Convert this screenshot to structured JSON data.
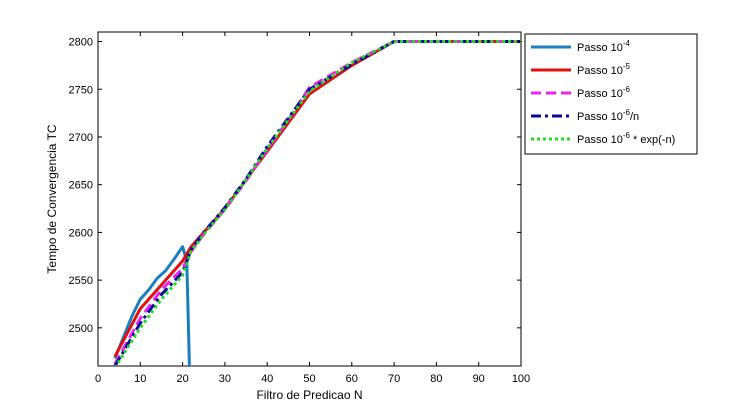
{
  "chart_data": {
    "type": "line",
    "title": "",
    "xlabel": "Filtro de Predicao N",
    "ylabel": "Tempo de Convergencia TC",
    "xlim": [
      0,
      100
    ],
    "ylim": [
      2460,
      2810
    ],
    "xticks": [
      "0",
      "10",
      "20",
      "30",
      "40",
      "50",
      "60",
      "70",
      "80",
      "90",
      "100"
    ],
    "yticks": [
      "2500",
      "2550",
      "2600",
      "2650",
      "2700",
      "2750",
      "2800"
    ],
    "grid": false,
    "legend_position": "top-right-outside",
    "series": [
      {
        "name": "Passo 10^-4",
        "legend": {
          "base": "Passo 10",
          "sup": "-4",
          "suffix": ""
        },
        "color": "#1a7fbf",
        "dash": "solid",
        "x": [
          4,
          6,
          8,
          10,
          12,
          14,
          16,
          18,
          20,
          21,
          21.6
        ],
        "y": [
          2468,
          2490,
          2512,
          2530,
          2540,
          2552,
          2560,
          2572,
          2585,
          2570,
          2460
        ]
      },
      {
        "name": "Passo 10^-5",
        "legend": {
          "base": "Passo 10",
          "sup": "-5",
          "suffix": ""
        },
        "color": "#dd1111",
        "dash": "solid",
        "x": [
          4,
          10,
          15,
          20,
          22,
          25,
          30,
          35,
          40,
          45,
          50,
          60,
          70,
          80,
          90,
          100
        ],
        "y": [
          2470,
          2520,
          2545,
          2570,
          2585,
          2600,
          2625,
          2655,
          2685,
          2715,
          2745,
          2775,
          2800,
          2800,
          2800,
          2800
        ]
      },
      {
        "name": "Passo 10^-6",
        "legend": {
          "base": "Passo 10",
          "sup": "-6",
          "suffix": ""
        },
        "color": "#ee22ee",
        "dash": "dashed",
        "x": [
          4,
          10,
          15,
          20,
          22,
          25,
          30,
          35,
          40,
          45,
          50,
          60,
          70,
          80,
          90,
          100
        ],
        "y": [
          2462,
          2510,
          2540,
          2562,
          2580,
          2598,
          2624,
          2654,
          2687,
          2718,
          2752,
          2778,
          2800,
          2800,
          2800,
          2800
        ]
      },
      {
        "name": "Passo 10^-6/n",
        "legend": {
          "base": "Passo 10",
          "sup": "-6",
          "suffix": "/n"
        },
        "color": "#0a0a99",
        "dash": "dashdot",
        "x": [
          4,
          10,
          15,
          20,
          22,
          25,
          30,
          35,
          40,
          45,
          50,
          60,
          70,
          80,
          90,
          100
        ],
        "y": [
          2460,
          2505,
          2535,
          2558,
          2582,
          2600,
          2626,
          2656,
          2690,
          2720,
          2750,
          2776,
          2800,
          2800,
          2800,
          2800
        ]
      },
      {
        "name": "Passo 10^-6 * exp(-n)",
        "legend": {
          "base": "Passo 10",
          "sup": "-6",
          "suffix": " * exp(-n)"
        },
        "color": "#22dd22",
        "dash": "dotted",
        "x": [
          4,
          10,
          15,
          20,
          22,
          25,
          30,
          35,
          40,
          45,
          50,
          60,
          70,
          80,
          90,
          100
        ],
        "y": [
          2458,
          2500,
          2530,
          2555,
          2580,
          2598,
          2624,
          2655,
          2688,
          2718,
          2748,
          2778,
          2800,
          2800,
          2800,
          2800
        ]
      }
    ]
  }
}
